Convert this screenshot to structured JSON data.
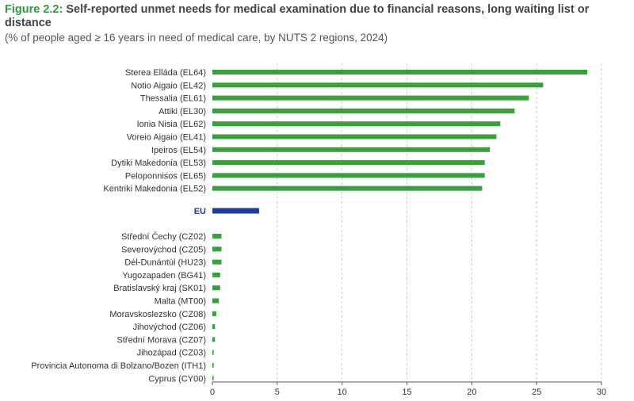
{
  "title": {
    "figure_label": "Figure 2.2:",
    "text": "Self-reported unmet needs for medical examination due to financial reasons, long waiting list or distance",
    "subtitle": "(% of people aged ≥ 16 years in need of medical care, by NUTS 2 regions, 2024)"
  },
  "colors": {
    "bar": "#3aa03a",
    "eu_bar": "#1f3d99",
    "grid": "#c8c8c8",
    "axis": "#555555"
  },
  "chart_data": {
    "type": "bar",
    "orientation": "horizontal",
    "xlim": [
      0,
      30
    ],
    "xticks": [
      0,
      5,
      10,
      15,
      20,
      25,
      30
    ],
    "grid": true,
    "groups": [
      {
        "categories": [
          "Sterea Elláda (EL64)",
          "Notio Aigaio (EL42)",
          "Thessalia (EL61)",
          "Attiki (EL30)",
          "Ionia Nisia (EL62)",
          "Voreio Aigaio (EL41)",
          "Ipeiros (EL54)",
          "Dytiki Makedonia (EL53)",
          "Peloponnisos (EL65)",
          "Kentriki Makedonia (EL52)"
        ],
        "values": [
          28.9,
          25.5,
          24.4,
          23.3,
          22.2,
          21.9,
          21.4,
          21.0,
          21.0,
          20.8
        ]
      },
      {
        "categories": [
          "EU"
        ],
        "values": [
          3.6
        ],
        "highlight": true
      },
      {
        "categories": [
          "Střední Čechy (CZ02)",
          "Severovýchod (CZ05)",
          "Dél-Dunántúl (HU23)",
          "Yugozapaden (BG41)",
          "Bratislavský kraj (SK01)",
          "Malta (MT00)",
          "Moravskoslezsko (CZ08)",
          "Jihovýchod (CZ06)",
          "Střední Morava (CZ07)",
          "Jihozápad (CZ03)",
          "Provincia Autonoma di Bolzano/Bozen (ITH1)",
          "Cyprus (CY00)"
        ],
        "values": [
          0.7,
          0.7,
          0.7,
          0.6,
          0.6,
          0.5,
          0.3,
          0.2,
          0.2,
          0.1,
          0.1,
          0.1
        ]
      }
    ]
  }
}
